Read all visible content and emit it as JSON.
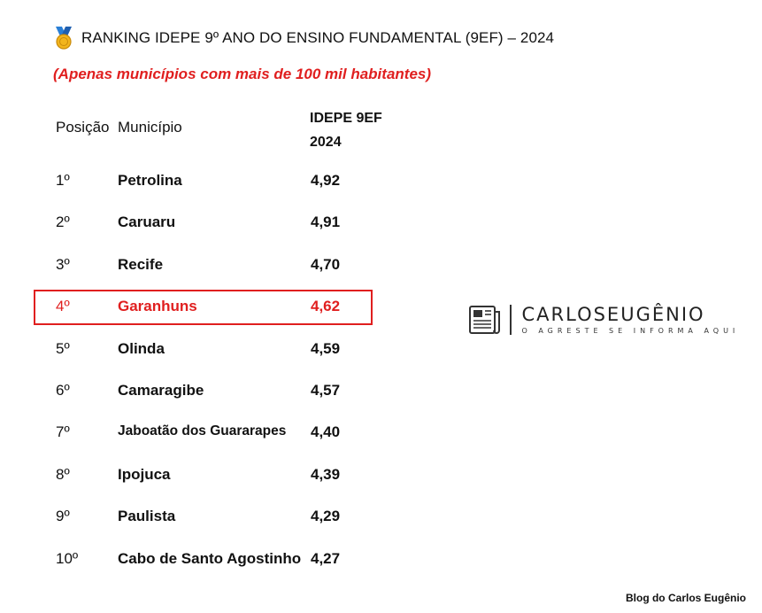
{
  "title": "RANKING IDEPE 9º ANO DO ENSINO FUNDAMENTAL (9EF) – 2024",
  "subtitle": "(Apenas municípios com mais de 100 mil habitantes)",
  "headers": {
    "position": "Posição",
    "municipality": "Município",
    "score_line1": "IDEPE 9EF",
    "score_line2": "2024"
  },
  "rows": [
    {
      "position": "1º",
      "municipality": "Petrolina",
      "score": "4,92"
    },
    {
      "position": "2º",
      "municipality": "Caruaru",
      "score": "4,91"
    },
    {
      "position": "3º",
      "municipality": "Recife",
      "score": "4,70"
    },
    {
      "position": "4º",
      "municipality": "Garanhuns",
      "score": "4,62"
    },
    {
      "position": "5º",
      "municipality": "Olinda",
      "score": "4,59"
    },
    {
      "position": "6º",
      "municipality": "Camaragibe",
      "score": "4,57"
    },
    {
      "position": "7º",
      "municipality": "Jaboatão dos Guararapes",
      "score": "4,40"
    },
    {
      "position": "8º",
      "municipality": "Ipojuca",
      "score": "4,39"
    },
    {
      "position": "9º",
      "municipality": "Paulista",
      "score": "4,29"
    },
    {
      "position": "10º",
      "municipality": "Cabo de Santo Agostinho",
      "score": "4,27"
    }
  ],
  "highlight_color": "#e01f1f",
  "logo": {
    "brand": "CARLOSEUGÊNIO",
    "tagline": "O AGRESTE SE INFORMA AQUI",
    "icon": "newspaper-icon"
  },
  "medal_icon": "medal-icon",
  "footer": "Blog do Carlos Eugênio"
}
